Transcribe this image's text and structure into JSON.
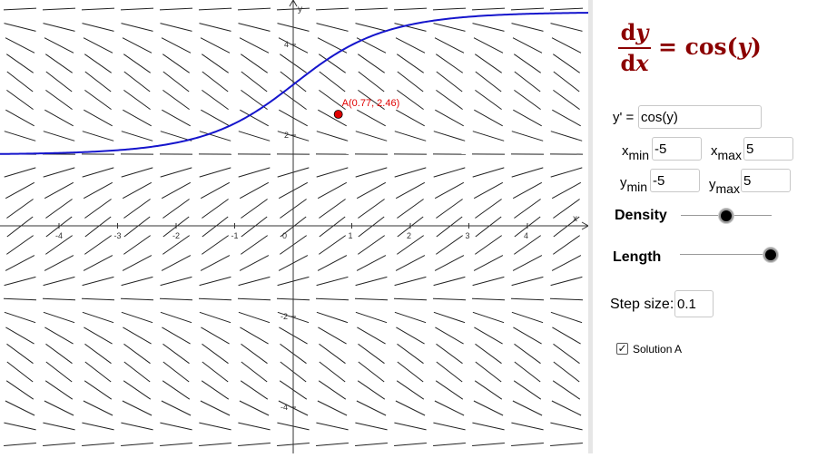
{
  "equation": {
    "num_d": "d",
    "num_var": "y",
    "den_d": "d",
    "den_var": "x",
    "rhs_func": "= cos(",
    "rhs_var": "y",
    "rhs_close": ")"
  },
  "inputs": {
    "yprime_label": "y' =",
    "yprime_value": "cos(y)",
    "xmin_label": "x",
    "xmin_sub": "min",
    "xmin_value": "-5",
    "xmax_label": "x",
    "xmax_sub": "max",
    "xmax_value": "5",
    "ymin_label": "y",
    "ymin_sub": "min",
    "ymin_value": "-5",
    "ymax_label": "y",
    "ymax_sub": "max",
    "ymax_value": "5",
    "step_label": "Step size:",
    "step_value": "0.1"
  },
  "sliders": {
    "density_label": "Density",
    "density_level": 0.5,
    "length_label": "Length",
    "length_level": 1.0
  },
  "checkbox": {
    "label": "Solution A",
    "checked": true,
    "check_glyph": "✓"
  },
  "graph": {
    "x_axis_label": "x",
    "y_axis_label": "y",
    "x_tick_labels": [
      "-4",
      "-3",
      "-2",
      "-1",
      "0",
      "1",
      "2",
      "3",
      "4"
    ],
    "y_tick_labels": [
      "4",
      "2",
      "-2",
      "-4"
    ],
    "point_label": "A(0.77, 2.46)",
    "point": {
      "x": 0.77,
      "y": 2.46
    },
    "view": {
      "xmin": -5,
      "xmax": 5,
      "ymin": -5,
      "ymax": 5
    },
    "curve_color": "#1515cc",
    "point_color": "#e00000",
    "slope_color": "#222222"
  }
}
